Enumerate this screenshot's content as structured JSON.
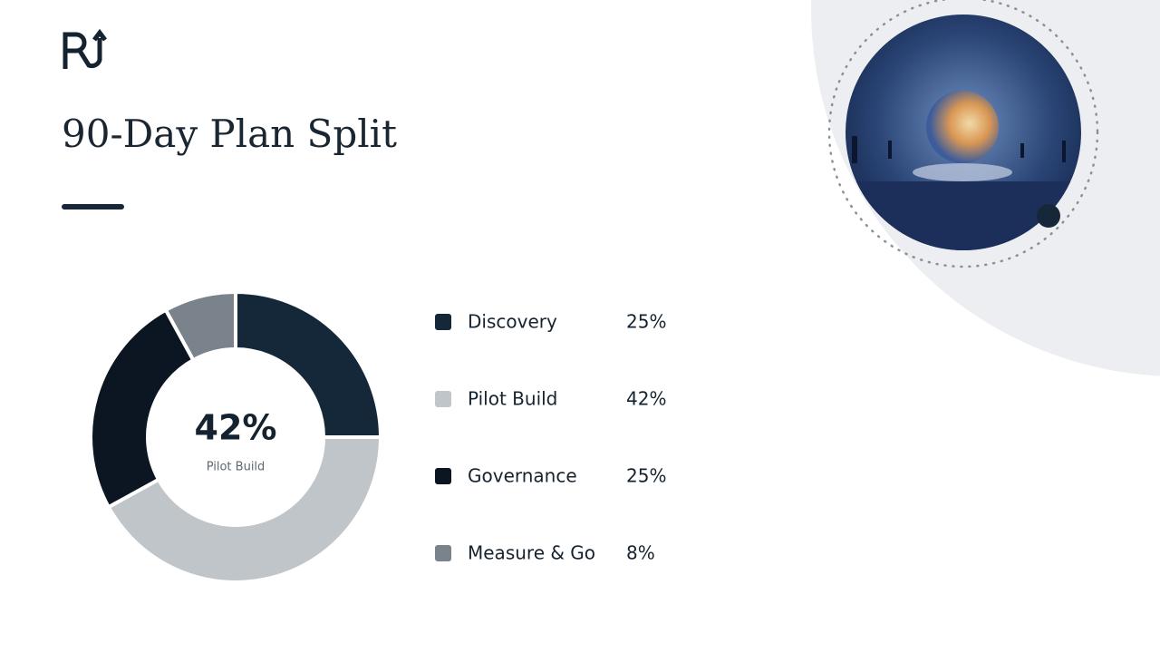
{
  "chart_data": {
    "type": "donut",
    "title": "90-Day Plan Split",
    "categories": [
      "Discovery",
      "Pilot Build",
      "Governance",
      "Measure & Go"
    ],
    "values": [
      25,
      42,
      25,
      8
    ],
    "value_labels": [
      "25%",
      "42%",
      "25%",
      "8%"
    ],
    "colors": [
      "#15283a",
      "#c0c5c9",
      "#0b1622",
      "#7a838c"
    ]
  }
}
